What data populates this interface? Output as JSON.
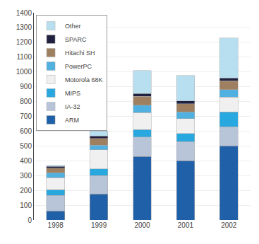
{
  "chart_data": {
    "type": "bar",
    "stacked": true,
    "categories": [
      "1998",
      "1999",
      "2000",
      "2001",
      "2002"
    ],
    "series": [
      {
        "name": "ARM",
        "color": "#2060a8",
        "values": [
          60,
          175,
          430,
          400,
          500
        ]
      },
      {
        "name": "IA-32",
        "color": "#b8c4d8",
        "values": [
          105,
          125,
          130,
          130,
          130
        ]
      },
      {
        "name": "MIPS",
        "color": "#29a8e0",
        "values": [
          40,
          45,
          50,
          55,
          100
        ]
      },
      {
        "name": "Motorola 68K",
        "color": "#f0f0f0",
        "values": [
          80,
          130,
          115,
          100,
          100
        ]
      },
      {
        "name": "PowerPC",
        "color": "#50b0e0",
        "values": [
          35,
          30,
          50,
          45,
          50
        ]
      },
      {
        "name": "Hitachi SH",
        "color": "#9e8060",
        "values": [
          30,
          45,
          60,
          55,
          60
        ]
      },
      {
        "name": "SPARC",
        "color": "#202040",
        "values": [
          12,
          18,
          18,
          18,
          20
        ]
      },
      {
        "name": "Other",
        "color": "#b8dff0",
        "values": [
          8,
          32,
          157,
          172,
          270
        ]
      }
    ],
    "ylim": [
      0,
      1400
    ],
    "yticks": [
      0,
      100,
      200,
      300,
      400,
      500,
      600,
      700,
      800,
      900,
      1000,
      1100,
      1200,
      1300,
      1400
    ],
    "grid": true,
    "legend": "upper left"
  }
}
